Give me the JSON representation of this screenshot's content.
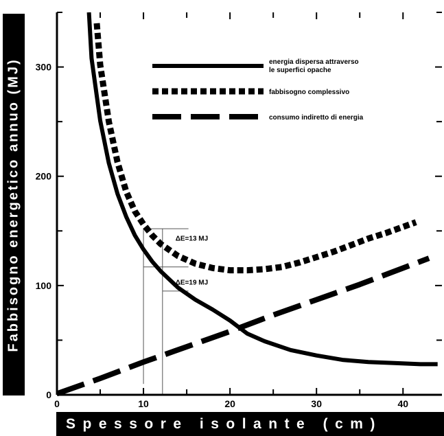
{
  "chart_data": {
    "type": "line",
    "xlabel": "Spessore isolante (cm)",
    "ylabel": "Fabbisogno energetico annuo (MJ)",
    "xlim": [
      0,
      44.5
    ],
    "ylim": [
      0,
      350
    ],
    "x_ticks": [
      0,
      10,
      20,
      30,
      40
    ],
    "x_tick_labels": [
      "0",
      "10",
      "20",
      "30",
      "40"
    ],
    "y_ticks": [
      0,
      100,
      200,
      300
    ],
    "y_tick_labels": [
      "0",
      "100",
      "200",
      "300"
    ],
    "legend_position": "top-right",
    "series": [
      {
        "name": "energia dispersa attraverso le superfici opache",
        "style": "solid",
        "x": [
          3.7,
          4,
          5,
          6,
          7,
          8,
          9,
          10,
          11,
          12,
          14,
          16,
          18,
          20,
          22,
          24,
          27,
          30,
          33,
          36,
          39,
          42,
          44
        ],
        "y": [
          350,
          308,
          251,
          212,
          184,
          163,
          146,
          133,
          122,
          113,
          98,
          87,
          78,
          68,
          56,
          49,
          41,
          36,
          32,
          30,
          29,
          28,
          28
        ]
      },
      {
        "name": "fabbisogno complessivo",
        "style": "dotted",
        "x": [
          4.6,
          5,
          6,
          7,
          8,
          9,
          10,
          11,
          12,
          14,
          16,
          18,
          20,
          22,
          24,
          26,
          28,
          30,
          32,
          34,
          36,
          38,
          41.5
        ],
        "y": [
          340,
          302,
          250,
          213,
          186,
          168,
          156,
          146,
          138,
          127,
          120,
          116,
          114,
          114,
          115,
          117,
          121,
          126,
          131,
          137,
          143,
          148,
          158
        ]
      },
      {
        "name": "consumo indiretto di energia",
        "style": "dashed",
        "x": [
          0,
          5,
          10,
          15,
          20,
          25,
          30,
          35,
          40,
          43
        ],
        "y": [
          1,
          15,
          30,
          44,
          58,
          73,
          87,
          101,
          116,
          125
        ]
      }
    ],
    "annotations": [
      {
        "text": "ΔE=13 MJ",
        "x": 13.7,
        "y": 141
      },
      {
        "text": "ΔE=19 MJ",
        "x": 13.7,
        "y": 101
      }
    ]
  }
}
